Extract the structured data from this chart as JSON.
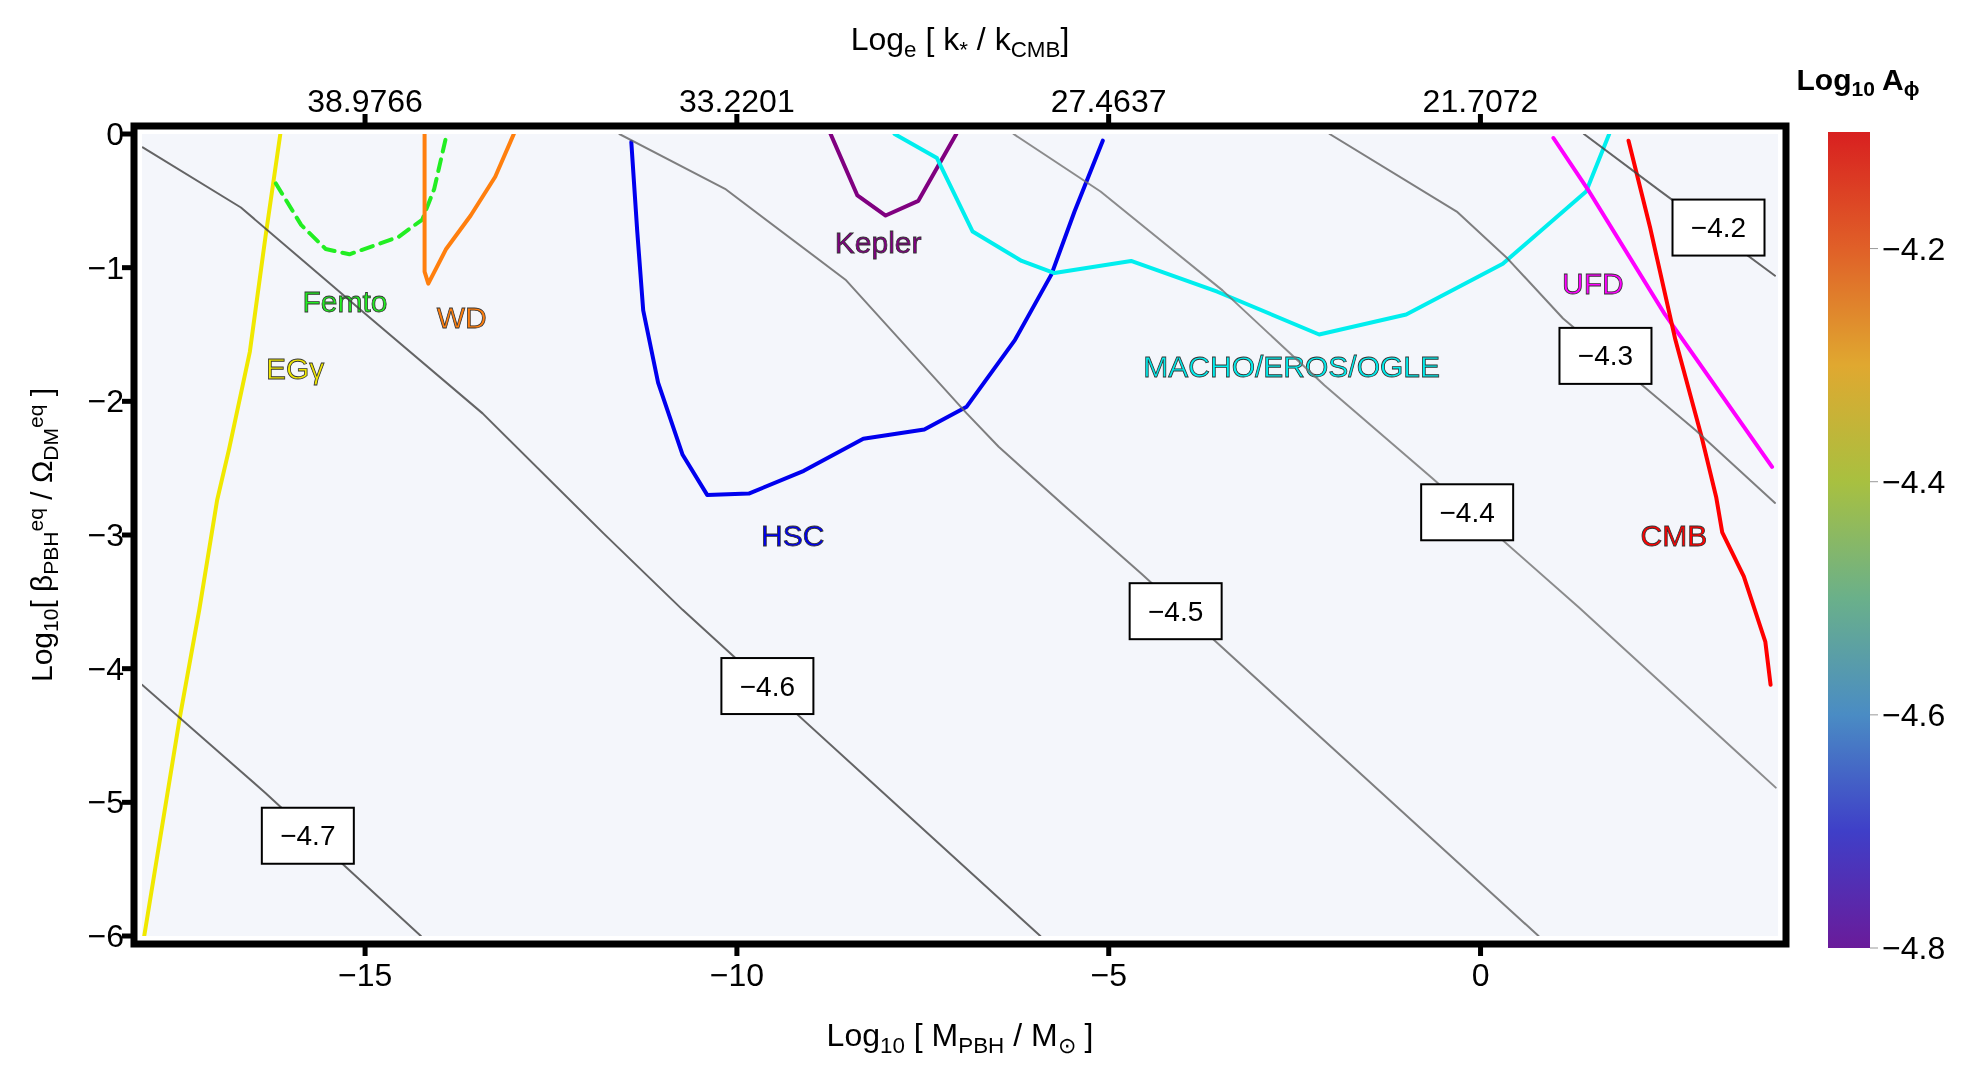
{
  "chart_data": {
    "type": "line",
    "xlabel": "Log$_{10}$ [ M$_{PBH}$ / M$_{⊙}$ ]",
    "ylabel": "Log$_{10}$[ β$_{PBH}$$^{eq}$ / Ω$_{DM}$$^{eq}$ ]",
    "x2label": "Log$_{e}$ [ k$_{*}$ / k$_{CMB}$]",
    "clabel": "Log$_{10}$ A$_{ϕ}$",
    "xlim": [
      -18,
      4
    ],
    "xticks": [
      -15,
      -10,
      -5,
      0
    ],
    "ylim": [
      -6,
      0
    ],
    "yticks": [
      -6,
      -5,
      -4,
      -3,
      -2,
      -1,
      0
    ],
    "x2lim": [
      42.43,
      17.1
    ],
    "x2ticks": [
      38.9766,
      33.2201,
      27.4637,
      21.7072
    ],
    "clim": [
      -4.8,
      -4.1
    ],
    "cticks": [
      -4.8,
      -4.6,
      -4.4,
      -4.2
    ],
    "grid": false,
    "legend": false,
    "marker": "none",
    "line_style": "solid",
    "series": [
      {
        "name": "EGγ",
        "color": "#f0e800",
        "x": [
          -16.14,
          -16.34,
          -16.55,
          -16.83,
          -16.99,
          -17.23,
          -17.49,
          -17.97
        ],
        "values": [
          0,
          -0.77,
          -1.63,
          -2.36,
          -2.74,
          -3.56,
          -4.36,
          -6
        ]
      },
      {
        "name": "Femto",
        "color": "#22ee22",
        "line_style": "dashed",
        "x": [
          -16.2,
          -15.86,
          -15.53,
          -15.21,
          -14.55,
          -14.23,
          -14.07,
          -13.91
        ],
        "values": [
          -0.37,
          -0.68,
          -0.86,
          -0.9,
          -0.77,
          -0.64,
          -0.41,
          -0.02
        ]
      },
      {
        "name": "WD",
        "color": "#ff7f0e",
        "x": [
          -14.2,
          -14.2,
          -14.15,
          -13.91,
          -13.58,
          -13.25,
          -13.0
        ],
        "values": [
          0,
          -1.03,
          -1.12,
          -0.86,
          -0.61,
          -0.32,
          0
        ]
      },
      {
        "name": "HSC",
        "color": "#0000ee",
        "x": [
          -11.42,
          -11.34,
          -11.26,
          -11.06,
          -10.73,
          -10.4,
          -9.84,
          -9.1,
          -8.3,
          -7.48,
          -6.91,
          -6.26,
          -5.77,
          -5.46,
          -5.08
        ],
        "values": [
          -0.06,
          -0.73,
          -1.32,
          -1.86,
          -2.4,
          -2.7,
          -2.69,
          -2.52,
          -2.28,
          -2.21,
          -2.04,
          -1.54,
          -1.05,
          -0.58,
          -0.05
        ]
      },
      {
        "name": "Kepler",
        "color": "#800080",
        "x": [
          -8.74,
          -8.38,
          -8.0,
          -7.56,
          -7.05
        ],
        "values": [
          0,
          -0.46,
          -0.61,
          -0.5,
          0
        ]
      },
      {
        "name": "MACHO/EROS/OGLE",
        "color": "#00eeee",
        "x": [
          -7.88,
          -7.31,
          -6.83,
          -6.17,
          -5.73,
          -4.7,
          -3.54,
          -2.17,
          -1.0,
          0.3,
          1.42,
          1.73
        ],
        "values": [
          0,
          -0.18,
          -0.73,
          -0.95,
          -1.04,
          -0.95,
          -1.18,
          -1.5,
          -1.35,
          -0.97,
          -0.43,
          0
        ]
      },
      {
        "name": "UFD",
        "color": "#ff00ff",
        "x": [
          0.98,
          1.46,
          2.48,
          3.92
        ],
        "values": [
          -0.03,
          -0.43,
          -1.35,
          -2.49
        ]
      },
      {
        "name": "CMB",
        "color": "#ff0000",
        "x": [
          1.99,
          2.28,
          2.62,
          2.97,
          3.17,
          3.25,
          3.54,
          3.83,
          3.9
        ],
        "values": [
          -0.05,
          -0.7,
          -1.54,
          -2.26,
          -2.72,
          -2.98,
          -3.31,
          -3.8,
          -4.12
        ]
      },
      {
        "color": "#404040",
        "x": [
          -18,
          -16.34,
          -14.25
        ],
        "values": [
          -4.12,
          -4.93,
          -6
        ]
      },
      {
        "color": "#404040",
        "x": [
          -17.99,
          -16.67,
          -15.05,
          -13.42,
          -11.79,
          -10.73,
          -9.56,
          -5.92
        ],
        "values": [
          -0.1,
          -0.55,
          -1.32,
          -2.09,
          -2.99,
          -3.56,
          null,
          -6
        ]
      },
      {
        "color": "#606060",
        "x": [
          -11.58,
          -10.16,
          -8.54,
          -6.91,
          -6.48,
          -5.54,
          -4.56,
          -4.11,
          0.78
        ],
        "values": [
          0,
          -0.41,
          -1.09,
          -2.09,
          -2.34,
          -2.81,
          -3.29,
          null,
          -6
        ]
      },
      {
        "color": "#707070",
        "x": [
          -6.28,
          -5.11,
          -3.47,
          -2.1,
          -0.66,
          -0.18,
          1.32,
          3.97
        ],
        "values": [
          0,
          -0.43,
          -1.17,
          -1.88,
          -2.57,
          null,
          -3.54,
          -4.89
        ]
      },
      {
        "color": "#606060",
        "x": [
          -2.03,
          -0.32,
          0.36,
          1.11,
          1.7,
          2.9,
          3.96
        ],
        "values": [
          0,
          -0.58,
          -0.93,
          -1.38,
          null,
          -2.22,
          -2.76
        ]
      },
      {
        "color": "#404040",
        "x": [
          1.39,
          2.4,
          3.96
        ],
        "values": [
          0,
          -0.42,
          -1.06
        ]
      }
    ],
    "annotations": [
      {
        "text": "−4.7",
        "x": -15.77,
        "y": -5.25
      },
      {
        "text": "−4.6",
        "x": -9.59,
        "y": -4.13
      },
      {
        "text": "−4.5",
        "x": -4.1,
        "y": -3.57
      },
      {
        "text": "−4.4",
        "x": -0.18,
        "y": -2.83
      },
      {
        "text": "−4.3",
        "x": 1.68,
        "y": -1.66
      },
      {
        "text": "−4.2",
        "x": 3.2,
        "y": -0.7
      }
    ]
  }
}
